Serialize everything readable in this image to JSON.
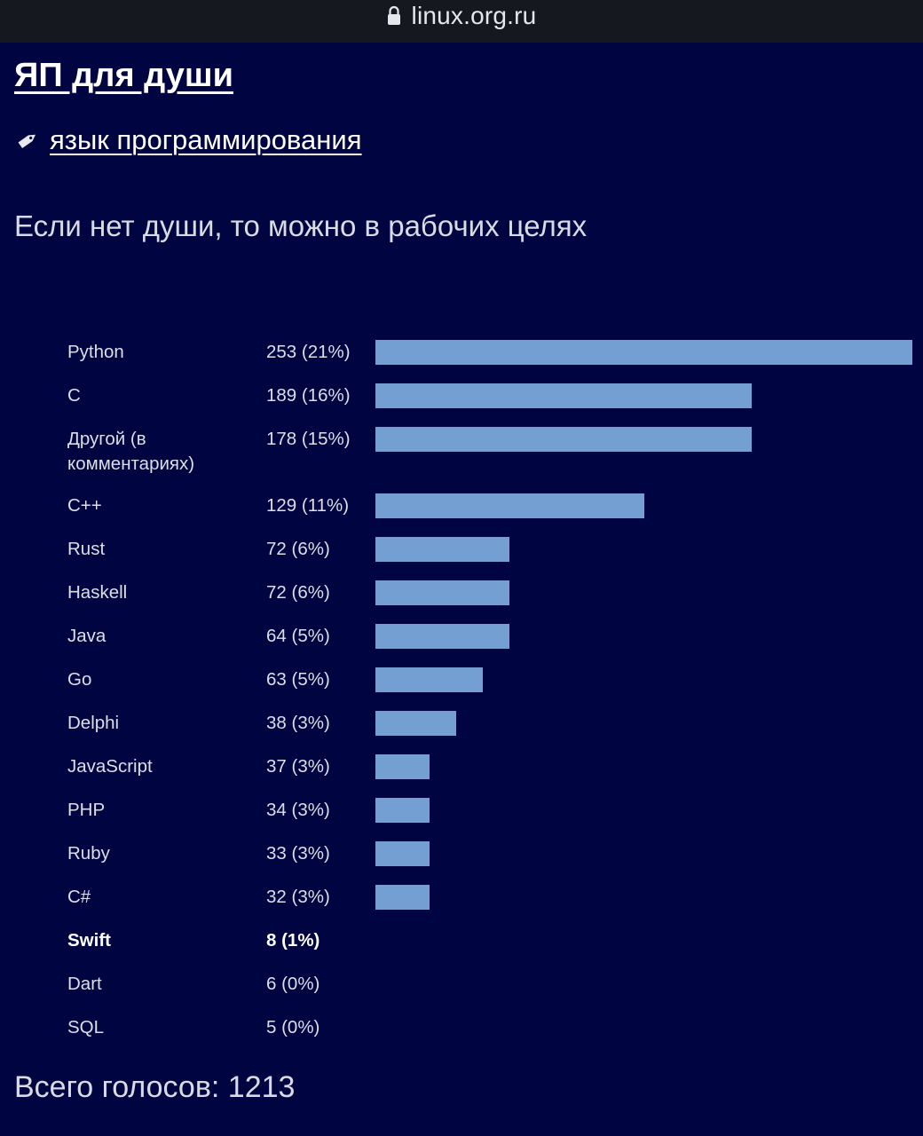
{
  "browser": {
    "url": "linux.org.ru"
  },
  "topic": {
    "title": "ЯП для души",
    "tag": "язык программирования",
    "question": "Если нет души, то можно в рабочих целях"
  },
  "poll": {
    "options": [
      {
        "label": "Python",
        "votes": "253 (21%)",
        "bar_level": 1.0
      },
      {
        "label": "C",
        "votes": "189 (16%)",
        "bar_level": 0.7
      },
      {
        "label": "Другой (в комментариях)",
        "votes": "178 (15%)",
        "bar_level": 0.7
      },
      {
        "label": "C++",
        "votes": "129 (11%)",
        "bar_level": 0.5
      },
      {
        "label": "Rust",
        "votes": "72 (6%)",
        "bar_level": 0.25
      },
      {
        "label": "Haskell",
        "votes": "72 (6%)",
        "bar_level": 0.25
      },
      {
        "label": "Java",
        "votes": "64 (5%)",
        "bar_level": 0.25
      },
      {
        "label": "Go",
        "votes": "63 (5%)",
        "bar_level": 0.2
      },
      {
        "label": "Delphi",
        "votes": "38 (3%)",
        "bar_level": 0.15
      },
      {
        "label": "JavaScript",
        "votes": "37 (3%)",
        "bar_level": 0.1
      },
      {
        "label": "PHP",
        "votes": "34 (3%)",
        "bar_level": 0.1
      },
      {
        "label": "Ruby",
        "votes": "33 (3%)",
        "bar_level": 0.1
      },
      {
        "label": "C#",
        "votes": "32 (3%)",
        "bar_level": 0.1
      },
      {
        "label": "Swift",
        "votes": "8 (1%)",
        "bar_level": 0,
        "highlighted": true
      },
      {
        "label": "Dart",
        "votes": "6 (0%)",
        "bar_level": 0
      },
      {
        "label": "SQL",
        "votes": "5 (0%)",
        "bar_level": 0
      }
    ],
    "total": "Всего голосов: 1213"
  },
  "colors": {
    "background": "#000440",
    "bar": "#749fd2",
    "url_bar": "#15181f"
  },
  "icons": {
    "lock": "lock-icon",
    "tag": "tag-icon"
  }
}
